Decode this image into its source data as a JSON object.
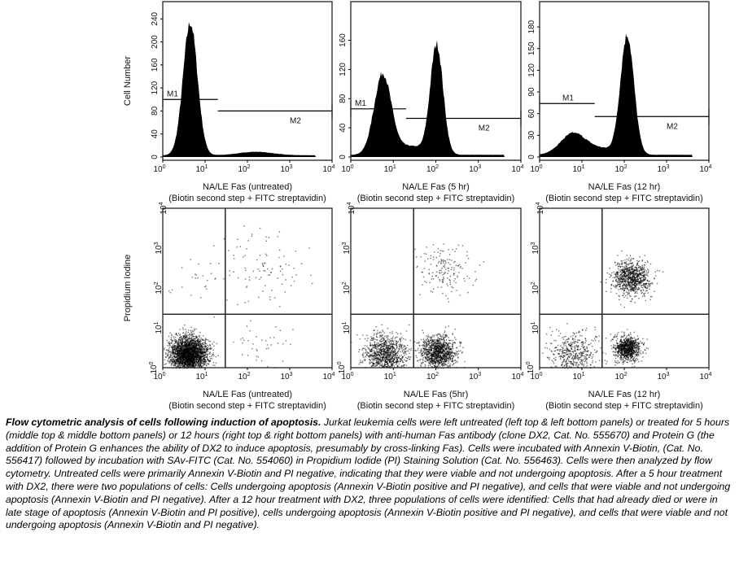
{
  "chart_data": [
    {
      "type": "area",
      "panel": "top-left",
      "ylabel": "Cell Number",
      "xlabel": "NA/LE Fas (untreated)",
      "xlabel2": "(Biotin second step + FITC streptavidin)",
      "xscale": "log",
      "xlim": [
        1,
        10000
      ],
      "ylim": [
        0,
        270
      ],
      "yticks": [
        "0",
        "40",
        "80",
        "120",
        "160",
        "200",
        "240"
      ],
      "ytick_values": [
        0,
        40,
        80,
        120,
        160,
        200,
        240
      ],
      "peaks": [
        {
          "log_x": 0.65,
          "height": 230,
          "sd": 0.17
        },
        {
          "log_x": 2.2,
          "height": 6,
          "sd": 0.4
        }
      ],
      "markers": [
        {
          "label": "M1",
          "from": 1,
          "to": 20,
          "level": 100
        },
        {
          "label": "M2",
          "from": 20,
          "to": 10000,
          "level": 80
        }
      ]
    },
    {
      "type": "area",
      "panel": "top-middle",
      "xlabel": "NA/LE Fas (5 hr)",
      "xlabel2": "(Biotin second step + FITC streptavidin)",
      "xscale": "log",
      "xlim": [
        1,
        10000
      ],
      "ylim": [
        0,
        213
      ],
      "yticks": [
        "0",
        "40",
        "80",
        "120",
        "160"
      ],
      "ytick_values": [
        0,
        40,
        80,
        120,
        160
      ],
      "peaks": [
        {
          "log_x": 0.75,
          "height": 110,
          "sd": 0.2
        },
        {
          "log_x": 2.02,
          "height": 150,
          "sd": 0.15
        },
        {
          "log_x": 1.4,
          "height": 12,
          "sd": 0.35
        }
      ],
      "markers": [
        {
          "label": "M1",
          "from": 1,
          "to": 20,
          "level": 66
        },
        {
          "label": "M2",
          "from": 20,
          "to": 10000,
          "level": 53
        }
      ]
    },
    {
      "type": "area",
      "panel": "top-right",
      "xlabel": "NA/LE Fas (12 hr)",
      "xlabel2": "(Biotin second step + FITC streptavidin)",
      "xscale": "log",
      "xlim": [
        1,
        10000
      ],
      "ylim": [
        0,
        215
      ],
      "yticks": [
        "0",
        "30",
        "60",
        "90",
        "120",
        "150",
        "180"
      ],
      "ytick_values": [
        0,
        30,
        60,
        90,
        120,
        150,
        180
      ],
      "peaks": [
        {
          "log_x": 0.8,
          "height": 30,
          "sd": 0.3
        },
        {
          "log_x": 2.07,
          "height": 165,
          "sd": 0.16
        },
        {
          "log_x": 1.5,
          "height": 8,
          "sd": 0.3
        }
      ],
      "markers": [
        {
          "label": "M1",
          "from": 1,
          "to": 20,
          "level": 74
        },
        {
          "label": "M2",
          "from": 20,
          "to": 10000,
          "level": 56
        }
      ]
    },
    {
      "type": "scatter",
      "panel": "bottom-left",
      "ylabel": "Propidium Iodine",
      "xlabel": "NA/LE Fas (untreated)",
      "xlabel2": "(Biotin second step + FITC streptavidin)",
      "xscale": "log",
      "yscale": "log",
      "xlim": [
        1,
        10000
      ],
      "ylim": [
        1,
        10000
      ],
      "quadrant": {
        "x": 30,
        "y": 22
      },
      "clusters": [
        {
          "log_x": 0.6,
          "log_y": 0.35,
          "sd": 0.22,
          "n": 2600
        },
        {
          "log_x": 2.4,
          "log_y": 2.5,
          "sd": 0.45,
          "n": 90
        },
        {
          "log_x": 2.4,
          "log_y": 0.6,
          "sd": 0.3,
          "n": 40
        },
        {
          "log_x": 0.8,
          "log_y": 2.2,
          "sd": 0.5,
          "n": 30
        }
      ]
    },
    {
      "type": "scatter",
      "panel": "bottom-middle",
      "xlabel": "NA/LE Fas (5hr)",
      "xlabel2": "(Biotin second step + FITC streptavidin)",
      "xscale": "log",
      "yscale": "log",
      "xlim": [
        1,
        10000
      ],
      "ylim": [
        1,
        10000
      ],
      "quadrant": {
        "x": 30,
        "y": 22
      },
      "clusters": [
        {
          "log_x": 0.8,
          "log_y": 0.35,
          "sd": 0.25,
          "n": 1000
        },
        {
          "log_x": 2.05,
          "log_y": 0.4,
          "sd": 0.2,
          "n": 1100
        },
        {
          "log_x": 2.2,
          "log_y": 2.45,
          "sd": 0.3,
          "n": 160
        }
      ]
    },
    {
      "type": "scatter",
      "panel": "bottom-right",
      "xlabel": "NA/LE Fas (12 hr)",
      "xlabel2": "(Biotin second step + FITC streptavidin)",
      "xscale": "log",
      "yscale": "log",
      "xlim": [
        1,
        10000
      ],
      "ylim": [
        1,
        10000
      ],
      "quadrant": {
        "x": 30,
        "y": 22
      },
      "clusters": [
        {
          "log_x": 0.8,
          "log_y": 0.35,
          "sd": 0.28,
          "n": 500
        },
        {
          "log_x": 2.05,
          "log_y": 0.5,
          "sd": 0.15,
          "n": 900
        },
        {
          "log_x": 2.15,
          "log_y": 2.25,
          "sd": 0.22,
          "n": 900
        }
      ]
    }
  ],
  "xtick_labels": [
    "10",
    "10",
    "10",
    "10",
    "10"
  ],
  "xtick_exps": [
    "0",
    "1",
    "2",
    "3",
    "4"
  ],
  "colors": {
    "fill": "#000000",
    "axis": "#222222"
  },
  "caption": {
    "title": "Flow cytometric analysis of cells following induction of apoptosis.",
    "body": " Jurkat leukemia cells were left untreated (left top & left bottom panels) or treated for 5 hours (middle top & middle bottom panels) or 12 hours (right top & right bottom panels) with anti-human Fas antibody (clone DX2, Cat. No. 555670) and Protein G (the addition of Protein G enhances the ability of DX2 to induce apoptosis, presumably by cross-linking Fas). Cells were incubated with Annexin V-Biotin, (Cat. No. 556417) followed by incubation with SAv-FITC (Cat. No. 554060) in Propidium Iodide (PI) Staining Solution (Cat. No. 556463). Cells were then analyzed by flow cytometry. Untreated cells were primarily Annexin V-Biotin and PI negative, indicating that they were viable and not undergoing apoptosis. After a 5 hour treatment with DX2, there were two populations of cells: Cells undergoing apoptosis (Annexin V-Biotin positive and PI negative), and cells that were viable and not undergoing apoptosis (Annexin V-Biotin and PI negative). After a 12 hour treatment with DX2, three populations of cells were identified: Cells that had already died or were in late stage of apoptosis (Annexin V-Biotin and PI positive), cells undergoing apoptosis (Annexin V-Biotin positive and PI negative), and cells that were viable and not undergoing apoptosis (Annexin V-Biotin and PI negative)."
  }
}
